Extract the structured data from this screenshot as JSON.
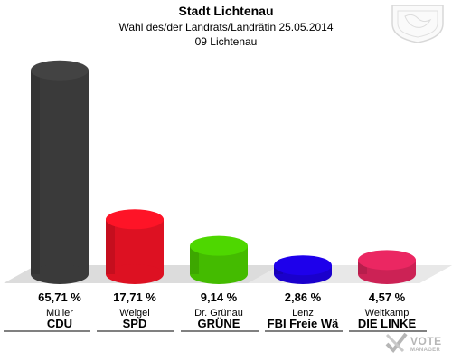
{
  "header": {
    "title": "Stadt Lichtenau",
    "subtitle": "Wahl des/der Landrats/Landrätin 25.05.2014",
    "district": "09 Lichtenau"
  },
  "logo": {
    "text": "VOTE",
    "sub": "MANAGER"
  },
  "crest": {
    "icon": "coat-of-arms-icon"
  },
  "chart_data": {
    "type": "bar",
    "title": "Stadt Lichtenau",
    "ylim": [
      0,
      70
    ],
    "grid": false,
    "legend": "none",
    "categories": [
      "CDU",
      "SPD",
      "GRÜNE",
      "FBI Freie Wä",
      "DIE LINKE"
    ],
    "candidates": [
      "Müller",
      "Weigel",
      "Dr. Grünau",
      "Lenz",
      "Weitkamp"
    ],
    "values": [
      65.71,
      17.71,
      9.14,
      2.86,
      4.57
    ],
    "value_labels": [
      "65,71 %",
      "17,71 %",
      "9,14 %",
      "2,86 %",
      "4,57 %"
    ],
    "colors": [
      "#3a3a3a",
      "#dd1122",
      "#44bb00",
      "#1a00cc",
      "#cc2255"
    ]
  }
}
